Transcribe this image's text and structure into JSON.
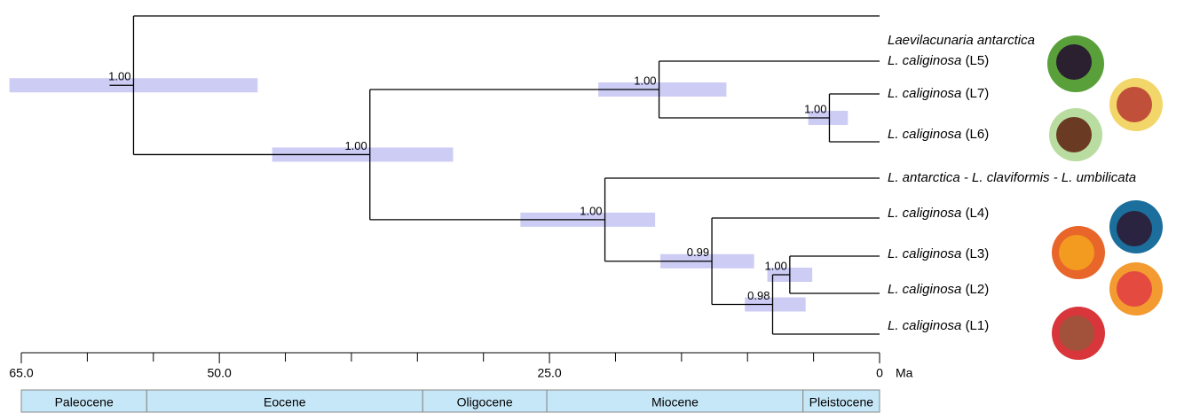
{
  "tree": {
    "support": "1.00",
    "age": 56.5,
    "hpd": [
      65.9,
      47.1
    ],
    "children": [
      {
        "name": "Laevilacunaria antarctica"
      },
      {
        "support": "1.00",
        "age": 38.6,
        "hpd": [
          46.0,
          32.3
        ],
        "children": [
          {
            "support": "1.00",
            "age": 16.7,
            "hpd": [
              21.3,
              11.6
            ],
            "children": [
              {
                "name": "L. caliginosa",
                "lineage": "(L5)"
              },
              {
                "support": "1.00",
                "age": 3.8,
                "hpd": [
                  5.4,
                  2.4
                ],
                "children": [
                  {
                    "name": "L. caliginosa",
                    "lineage": "(L7)"
                  },
                  {
                    "name": "L. caliginosa",
                    "lineage": "(L6)"
                  }
                ]
              }
            ]
          },
          {
            "support": "1.00",
            "age": 20.8,
            "hpd": [
              27.2,
              17.0
            ],
            "children": [
              {
                "name": "L. antarctica - L. claviformis - L. umbilicata"
              },
              {
                "support": "0.99",
                "age": 12.7,
                "hpd": [
                  16.6,
                  9.5
                ],
                "children": [
                  {
                    "name": "L. caliginosa",
                    "lineage": "(L4)"
                  },
                  {
                    "support": "0.98",
                    "age": 8.1,
                    "hpd": [
                      10.2,
                      5.6
                    ],
                    "children": [
                      {
                        "support": "1.00",
                        "age": 6.8,
                        "hpd": [
                          8.5,
                          5.1
                        ],
                        "children": [
                          {
                            "name": "L. caliginosa",
                            "lineage": "(L3)"
                          },
                          {
                            "name": "L. caliginosa",
                            "lineage": "(L2)"
                          }
                        ]
                      },
                      {
                        "name": "L. caliginosa",
                        "lineage": "(L1)"
                      }
                    ]
                  }
                ]
              }
            ]
          }
        ]
      }
    ]
  },
  "axis": {
    "xlim": [
      65,
      0
    ],
    "unit": "Ma",
    "ticks": [
      {
        "value": 65,
        "label": "65.0"
      },
      {
        "value": 50,
        "label": "50.0"
      },
      {
        "value": 25,
        "label": "25.0"
      },
      0
    ],
    "minor_ticks": [
      60,
      55,
      45,
      40,
      35,
      30,
      20,
      15,
      10,
      5
    ]
  },
  "epochs": [
    {
      "name": "Paleocene",
      "start": 65,
      "end": 55.5
    },
    {
      "name": "Eocene",
      "start": 55.5,
      "end": 34.6
    },
    {
      "name": "Oligocene",
      "start": 34.6,
      "end": 25.2
    },
    {
      "name": "Miocene",
      "start": 25.2,
      "end": 5.8
    },
    {
      "name": "Pleistocene",
      "start": 5.8,
      "end": 0
    }
  ]
}
